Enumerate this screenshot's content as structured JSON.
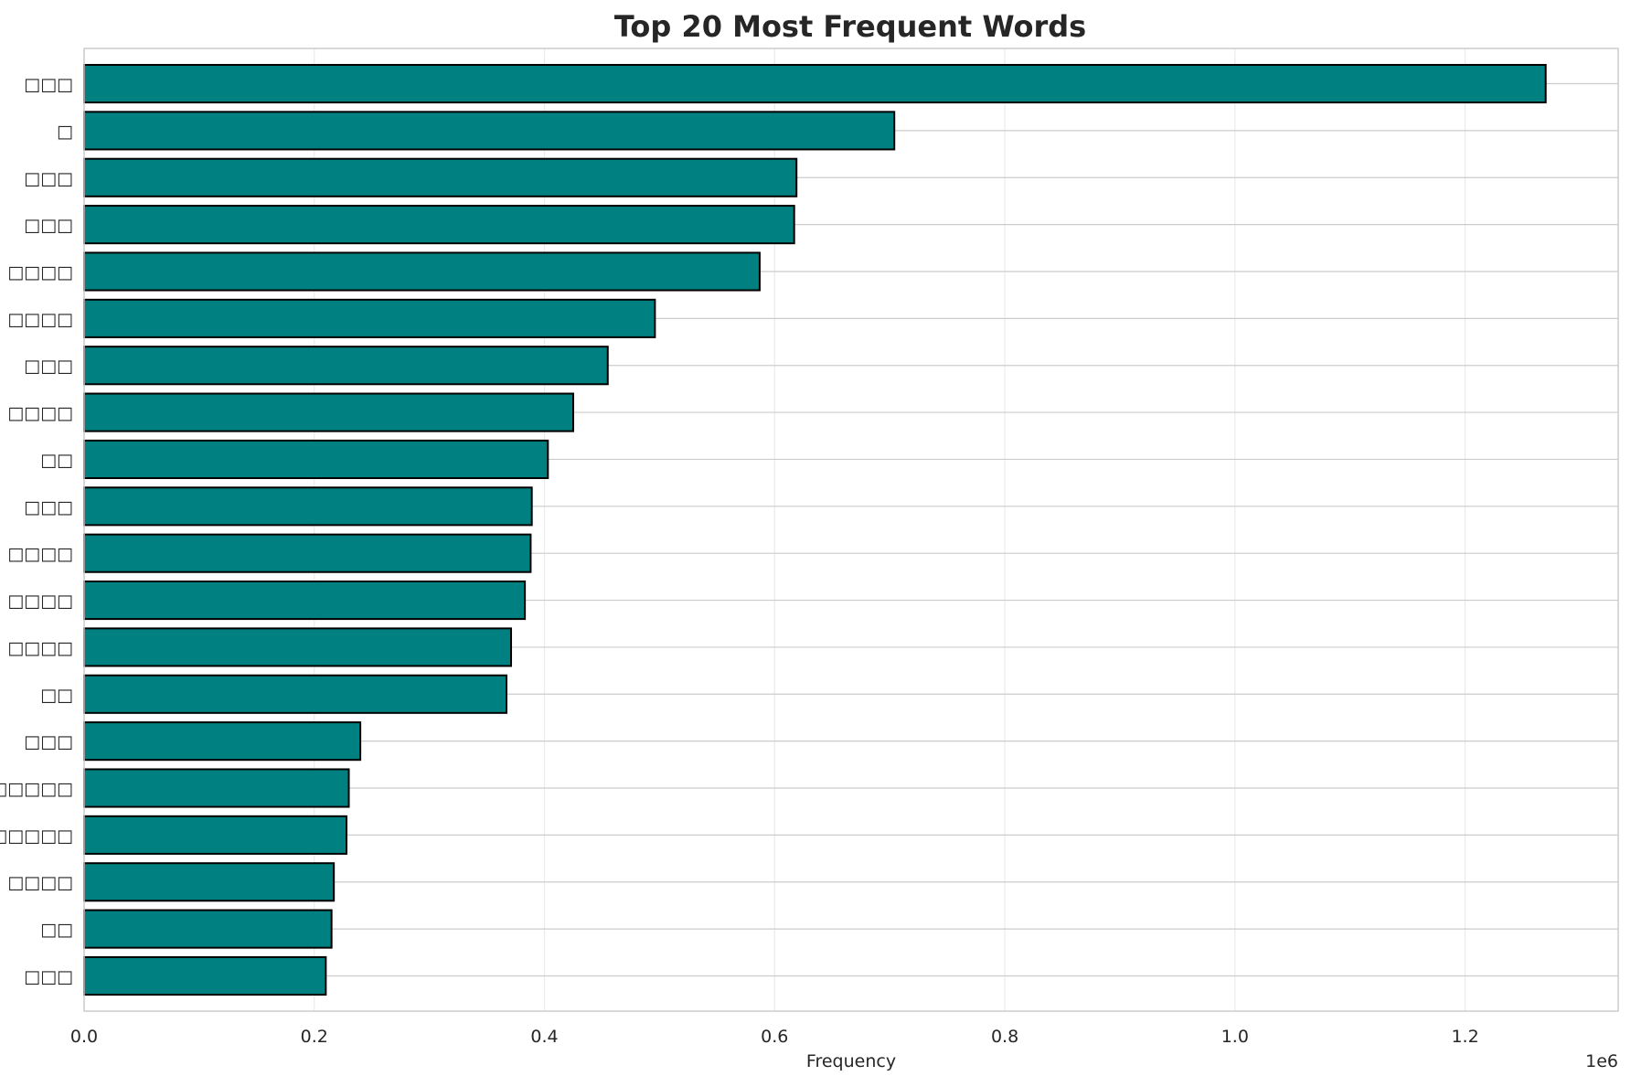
{
  "chart_data": {
    "type": "bar",
    "orientation": "horizontal",
    "title": "Top 20 Most Frequent Words",
    "xlabel": "Frequency",
    "ylabel": "",
    "x_offset_label": "1e6",
    "xlim": [
      0,
      1333000
    ],
    "xticks": [
      0,
      200000,
      400000,
      600000,
      800000,
      1000000,
      1200000
    ],
    "xtick_labels": [
      "0.0",
      "0.2",
      "0.4",
      "0.6",
      "0.8",
      "1.0",
      "1.2"
    ],
    "grid": true,
    "bar_color": "#008080",
    "bar_edge_color": "#000000",
    "categories": [
      "□□□",
      "□",
      "□□□",
      "□□□",
      "□□□□",
      "□□□□",
      "□□□",
      "□□□□",
      "□□",
      "□□□",
      "□□□□",
      "□□□□",
      "□□□□",
      "□□",
      "□□□",
      "□□□□□",
      "□□□□□",
      "□□□□",
      "□□",
      "□□□"
    ],
    "values": [
      1270000,
      704000,
      619000,
      617000,
      587000,
      496000,
      455000,
      425000,
      403000,
      389000,
      388000,
      383000,
      371000,
      367000,
      240000,
      230000,
      228000,
      217000,
      215000,
      210000
    ]
  }
}
